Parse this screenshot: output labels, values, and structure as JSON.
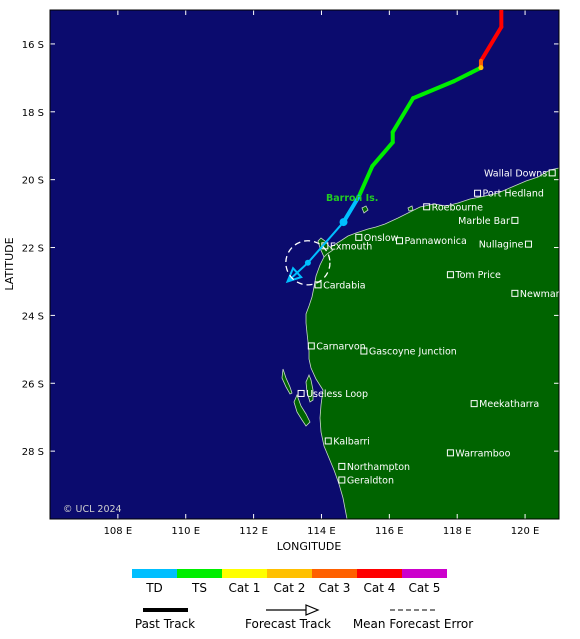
{
  "map": {
    "lon_range": [
      106,
      121
    ],
    "lat_range": [
      -30,
      -15
    ],
    "lon_ticks": [
      {
        "value": 108,
        "label": "108 E"
      },
      {
        "value": 110,
        "label": "110 E"
      },
      {
        "value": 112,
        "label": "112 E"
      },
      {
        "value": 114,
        "label": "114 E"
      },
      {
        "value": 116,
        "label": "116 E"
      },
      {
        "value": 118,
        "label": "118 E"
      },
      {
        "value": 120,
        "label": "120 E"
      }
    ],
    "lat_ticks": [
      {
        "value": -16,
        "label": "16 S"
      },
      {
        "value": -18,
        "label": "18 S"
      },
      {
        "value": -20,
        "label": "20 S"
      },
      {
        "value": -22,
        "label": "22 S"
      },
      {
        "value": -24,
        "label": "24 S"
      },
      {
        "value": -26,
        "label": "26 S"
      },
      {
        "value": -28,
        "label": "28 S"
      }
    ],
    "xlabel": "LONGITUDE",
    "ylabel": "LATITUDE",
    "copyright": "© UCL 2024",
    "colors": {
      "ocean": "#0b0b6e",
      "land": "#006400",
      "coast": "#c8d8c8",
      "place_marker": "#ffffff",
      "storm_label": "#22cc22"
    }
  },
  "places": [
    {
      "name": "Wallal Downs",
      "lon": 120.8,
      "lat": -19.8,
      "label_side": "left"
    },
    {
      "name": "Port Hedland",
      "lon": 118.6,
      "lat": -20.4,
      "label_side": "right"
    },
    {
      "name": "Marble Bar",
      "lon": 119.7,
      "lat": -21.2,
      "label_side": "left"
    },
    {
      "name": "Roebourne",
      "lon": 117.1,
      "lat": -20.8,
      "label_side": "right"
    },
    {
      "name": "Onslow",
      "lon": 115.1,
      "lat": -21.7,
      "label_side": "right"
    },
    {
      "name": "Pannawonica",
      "lon": 116.3,
      "lat": -21.8,
      "label_side": "right"
    },
    {
      "name": "Nullagine",
      "lon": 120.1,
      "lat": -21.9,
      "label_side": "left"
    },
    {
      "name": "Exmouth",
      "lon": 114.1,
      "lat": -21.95,
      "label_side": "right"
    },
    {
      "name": "Tom Price",
      "lon": 117.8,
      "lat": -22.8,
      "label_side": "right"
    },
    {
      "name": "Cardabia",
      "lon": 113.9,
      "lat": -23.1,
      "label_side": "right"
    },
    {
      "name": "Newman",
      "lon": 119.7,
      "lat": -23.35,
      "label_side": "right"
    },
    {
      "name": "Carnarvon",
      "lon": 113.7,
      "lat": -24.9,
      "label_side": "right"
    },
    {
      "name": "Gascoyne Junction",
      "lon": 115.25,
      "lat": -25.05,
      "label_side": "right"
    },
    {
      "name": "Useless Loop",
      "lon": 113.4,
      "lat": -26.3,
      "label_side": "right"
    },
    {
      "name": "Meekatharra",
      "lon": 118.5,
      "lat": -26.6,
      "label_side": "right"
    },
    {
      "name": "Kalbarri",
      "lon": 114.2,
      "lat": -27.7,
      "label_side": "right"
    },
    {
      "name": "Warramboo",
      "lon": 117.8,
      "lat": -28.05,
      "label_side": "right"
    },
    {
      "name": "Northampton",
      "lon": 114.6,
      "lat": -28.45,
      "label_side": "right"
    },
    {
      "name": "Geraldton",
      "lon": 114.6,
      "lat": -28.85,
      "label_side": "right"
    }
  ],
  "storm": {
    "name": "Barron Is.",
    "past_track": [
      {
        "lon": 119.3,
        "lat": -15.0,
        "cat": "Cat 3"
      },
      {
        "lon": 119.3,
        "lat": -15.5,
        "cat": "Cat 4"
      },
      {
        "lon": 118.7,
        "lat": -16.5,
        "cat": "Cat 4"
      },
      {
        "lon": 118.7,
        "lat": -16.7,
        "cat": "Cat 3"
      },
      {
        "lon": 118.4,
        "lat": -16.85,
        "cat": "TS"
      },
      {
        "lon": 117.9,
        "lat": -17.1,
        "cat": "TS"
      },
      {
        "lon": 116.7,
        "lat": -17.6,
        "cat": "TS"
      },
      {
        "lon": 116.1,
        "lat": -18.6,
        "cat": "TS"
      },
      {
        "lon": 116.1,
        "lat": -18.9,
        "cat": "TS"
      },
      {
        "lon": 115.5,
        "lat": -19.6,
        "cat": "TS"
      },
      {
        "lon": 115.1,
        "lat": -20.5,
        "cat": "TS"
      },
      {
        "lon": 114.65,
        "lat": -21.25,
        "cat": "TD"
      }
    ],
    "forecast_track": [
      {
        "lon": 114.65,
        "lat": -21.25
      },
      {
        "lon": 113.6,
        "lat": -22.45
      },
      {
        "lon": 113.0,
        "lat": -23.0
      }
    ],
    "error_circle": {
      "lon": 113.6,
      "lat": -22.45,
      "radius_deg": 0.65
    }
  },
  "legend": {
    "categories": [
      {
        "label": "TD",
        "color": "#00bfff"
      },
      {
        "label": "TS",
        "color": "#00ee00"
      },
      {
        "label": "Cat 1",
        "color": "#ffff00"
      },
      {
        "label": "Cat 2",
        "color": "#ffc000"
      },
      {
        "label": "Cat 3",
        "color": "#ff6000"
      },
      {
        "label": "Cat 4",
        "color": "#ff0000"
      },
      {
        "label": "Cat 5",
        "color": "#cc00cc"
      }
    ],
    "past_track": "Past Track",
    "forecast_track": "Forecast Track",
    "mean_error": "Mean Forecast Error"
  }
}
